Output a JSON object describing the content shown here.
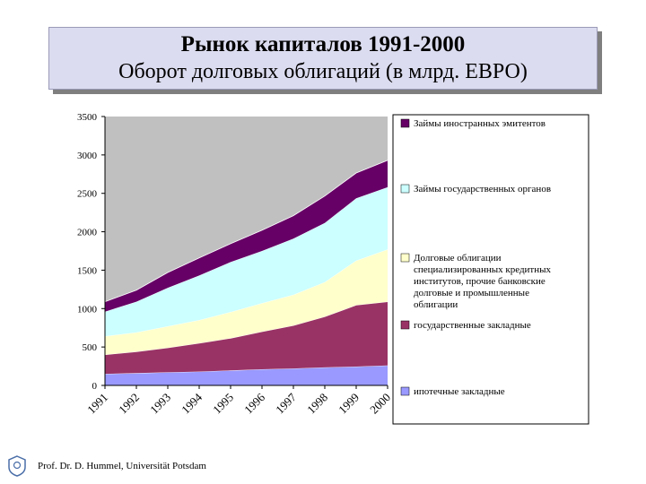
{
  "title": {
    "line1": "Рынок капиталов 1991-2000",
    "line2": "Оборот долговых облигаций (в млрд. ЕВРО)"
  },
  "footer": "Prof. Dr. D. Hummel, Universität Potsdam",
  "logo_icon": "university-seal-icon",
  "chart_data": {
    "type": "area",
    "stacked": true,
    "x": [
      "1991",
      "1992",
      "1993",
      "1994",
      "1995",
      "1996",
      "1997",
      "1998",
      "1999",
      "2000"
    ],
    "ylim": [
      0,
      3500
    ],
    "yticks": [
      0,
      500,
      1000,
      1500,
      2000,
      2500,
      3000,
      3500
    ],
    "plot_background": "#c0c0c0",
    "legend_position": "right",
    "series": [
      {
        "name": "ипотечные закладные",
        "color": "#9999ff",
        "values": [
          150,
          160,
          170,
          180,
          195,
          210,
          220,
          235,
          245,
          260
        ]
      },
      {
        "name": "государственные закладные",
        "color": "#993366",
        "values": [
          250,
          280,
          320,
          370,
          420,
          490,
          560,
          660,
          800,
          830
        ]
      },
      {
        "name": "Долговые облигации специализированных кредитных институтов, прочие банковские долговые и промышленные облигации",
        "color": "#ffffcc",
        "values": [
          240,
          250,
          280,
          300,
          340,
          370,
          400,
          450,
          580,
          680
        ]
      },
      {
        "name": "Займы государственных органов",
        "color": "#ccffff",
        "values": [
          320,
          400,
          500,
          580,
          650,
          680,
          730,
          770,
          810,
          810
        ]
      },
      {
        "name": "Займы иностранных эмитентов",
        "color": "#660066",
        "values": [
          130,
          150,
          200,
          230,
          240,
          270,
          300,
          350,
          330,
          350
        ]
      }
    ]
  }
}
